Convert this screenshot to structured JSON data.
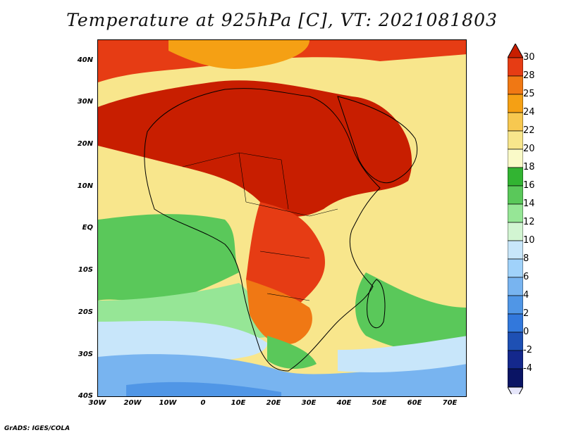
{
  "title": "Temperature at 925hPa [C], VT: 2021081803",
  "credit": "GrADS: IGES/COLA",
  "map": {
    "lon_range": [
      -30,
      75
    ],
    "lat_range": [
      -40,
      45
    ],
    "lat_ticks": [
      {
        "value": 40,
        "label": "40N"
      },
      {
        "value": 30,
        "label": "30N"
      },
      {
        "value": 20,
        "label": "20N"
      },
      {
        "value": 10,
        "label": "10N"
      },
      {
        "value": 0,
        "label": "EQ"
      },
      {
        "value": -10,
        "label": "10S"
      },
      {
        "value": -20,
        "label": "20S"
      },
      {
        "value": -30,
        "label": "30S"
      },
      {
        "value": -40,
        "label": "40S"
      }
    ],
    "lon_ticks": [
      {
        "value": -30,
        "label": "30W"
      },
      {
        "value": -20,
        "label": "20W"
      },
      {
        "value": -10,
        "label": "10W"
      },
      {
        "value": 0,
        "label": "0"
      },
      {
        "value": 10,
        "label": "10E"
      },
      {
        "value": 20,
        "label": "20E"
      },
      {
        "value": 30,
        "label": "30E"
      },
      {
        "value": 40,
        "label": "40E"
      },
      {
        "value": 50,
        "label": "50E"
      },
      {
        "value": 60,
        "label": "60E"
      },
      {
        "value": 70,
        "label": "70E"
      }
    ]
  },
  "colorbar": {
    "levels": [
      "30",
      "28",
      "25",
      "24",
      "22",
      "20",
      "18",
      "16",
      "14",
      "12",
      "10",
      "8",
      "6",
      "4",
      "2",
      "0",
      "-2",
      "-4"
    ],
    "colors": [
      "#c81e00",
      "#e63c14",
      "#f07814",
      "#f5a014",
      "#f7c850",
      "#f8e68c",
      "#fafac8",
      "#32b432",
      "#5ac85a",
      "#96e696",
      "#d2f5d2",
      "#c8e6fa",
      "#a0d2fa",
      "#78b4f0",
      "#5096e6",
      "#3278dc",
      "#1e50b4",
      "#14288c",
      "#0a1464",
      "#e6e6fa"
    ]
  }
}
